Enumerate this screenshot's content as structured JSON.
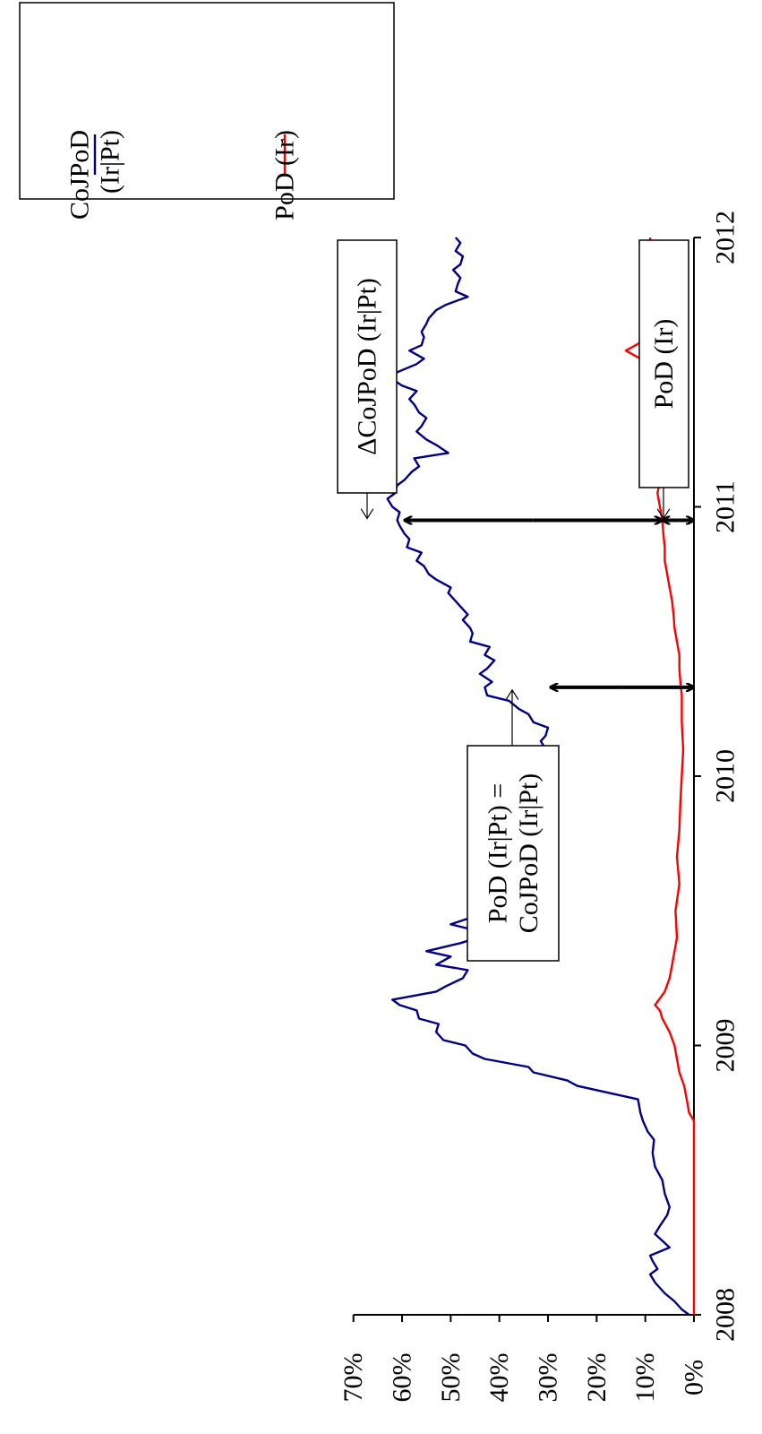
{
  "chart_data": {
    "type": "line",
    "title": "",
    "xlabel": "",
    "ylabel": "",
    "orientation": "rotated-90-clockwise",
    "x_ticks": [
      "2008",
      "2009",
      "2010",
      "2011",
      "2012"
    ],
    "x_range": [
      2008.0,
      2012.0
    ],
    "y_ticks": [
      "0%",
      "10%",
      "20%",
      "30%",
      "40%",
      "50%",
      "60%",
      "70%"
    ],
    "y_range": [
      0,
      70
    ],
    "legend_position": "top-right",
    "series": [
      {
        "name": "CoJPoD (Ir|Pt)",
        "color": "#000080",
        "x": [
          2008.0,
          2008.02,
          2008.05,
          2008.08,
          2008.1,
          2008.12,
          2008.15,
          2008.17,
          2008.2,
          2008.22,
          2008.25,
          2008.3,
          2008.33,
          2008.37,
          2008.4,
          2008.45,
          2008.5,
          2008.55,
          2008.6,
          2008.65,
          2008.68,
          2008.7,
          2008.72,
          2008.75,
          2008.8,
          2008.83,
          2008.85,
          2008.87,
          2008.9,
          2008.92,
          2008.95,
          2008.97,
          2009.0,
          2009.02,
          2009.05,
          2009.08,
          2009.1,
          2009.13,
          2009.15,
          2009.17,
          2009.2,
          2009.22,
          2009.25,
          2009.28,
          2009.3,
          2009.33,
          2009.35,
          2009.38,
          2009.4,
          2009.43,
          2009.45,
          2009.48,
          2009.5,
          2009.53,
          2009.55,
          2009.58,
          2009.6,
          2009.63,
          2009.65,
          2009.68,
          2009.7,
          2009.73,
          2009.75,
          2009.78,
          2009.8,
          2009.83,
          2009.85,
          2009.88,
          2009.9,
          2009.93,
          2009.95,
          2009.98,
          2010.0,
          2010.03,
          2010.05,
          2010.08,
          2010.1,
          2010.13,
          2010.15,
          2010.18,
          2010.2,
          2010.23,
          2010.25,
          2010.28,
          2010.3,
          2010.33,
          2010.35,
          2010.38,
          2010.4,
          2010.43,
          2010.45,
          2010.48,
          2010.5,
          2010.53,
          2010.55,
          2010.58,
          2010.6,
          2010.63,
          2010.65,
          2010.68,
          2010.7,
          2010.73,
          2010.75,
          2010.78,
          2010.8,
          2010.83,
          2010.85,
          2010.88,
          2010.9,
          2010.93,
          2010.95,
          2010.98,
          2011.0,
          2011.03,
          2011.05,
          2011.08,
          2011.1,
          2011.13,
          2011.15,
          2011.18,
          2011.2,
          2011.23,
          2011.25,
          2011.28,
          2011.3,
          2011.33,
          2011.35,
          2011.38,
          2011.4,
          2011.43,
          2011.45,
          2011.48,
          2011.5,
          2011.53,
          2011.55,
          2011.58,
          2011.6,
          2011.63,
          2011.65,
          2011.68,
          2011.7,
          2011.73,
          2011.75,
          2011.78,
          2011.8,
          2011.83,
          2011.85,
          2011.88,
          2011.9,
          2011.93,
          2011.95,
          2011.98,
          2012.0
        ],
        "y": [
          1,
          2.5,
          4,
          6,
          7,
          8,
          9,
          7.5,
          8.5,
          9,
          5,
          8,
          7,
          5.5,
          5,
          6,
          6.5,
          8,
          8.5,
          8.2,
          9.5,
          10,
          10.5,
          11,
          11.5,
          19,
          24,
          26,
          33,
          34,
          43,
          45.5,
          47,
          51.5,
          53,
          52.5,
          56.5,
          57,
          60.5,
          62,
          53,
          51,
          47.5,
          46.5,
          53,
          50,
          55,
          48,
          44.5,
          45.5,
          50,
          45,
          42.5,
          43.5,
          37,
          39,
          39.5,
          36.5,
          36,
          38,
          34.5,
          34,
          32.5,
          33,
          32,
          34,
          36.5,
          36.5,
          34.5,
          33.5,
          36,
          34.5,
          33,
          31.5,
          32,
          31,
          30.5,
          31.5,
          30.5,
          30,
          33,
          34,
          36,
          38,
          42.5,
          43,
          41.5,
          44,
          42.5,
          41,
          43,
          42,
          46,
          45.5,
          46,
          47.5,
          46.5,
          48,
          49,
          50.5,
          50,
          53,
          54.5,
          55.5,
          57,
          56,
          59,
          58.5,
          59.5,
          60.5,
          61,
          60.5,
          62,
          63,
          61.5,
          61,
          59.5,
          58,
          56.5,
          57.5,
          50.5,
          53,
          55,
          57,
          56,
          55,
          56.5,
          57.5,
          58.5,
          57,
          60,
          62.5,
          61,
          57,
          55.5,
          58.5,
          56,
          55.5,
          56,
          55,
          54.5,
          53,
          51,
          46.5,
          49,
          48.5,
          48,
          49.5,
          48,
          47.5,
          49,
          48,
          49
        ]
      },
      {
        "name": "PoD (Ir)",
        "color": "#ff0000",
        "x": [
          2008.0,
          2008.15,
          2008.3,
          2008.45,
          2008.6,
          2008.72,
          2008.75,
          2008.8,
          2008.85,
          2008.9,
          2008.95,
          2009.0,
          2009.05,
          2009.1,
          2009.13,
          2009.15,
          2009.2,
          2009.25,
          2009.3,
          2009.35,
          2009.4,
          2009.5,
          2009.6,
          2009.7,
          2009.8,
          2009.9,
          2010.0,
          2010.1,
          2010.2,
          2010.3,
          2010.35,
          2010.4,
          2010.45,
          2010.5,
          2010.55,
          2010.6,
          2010.65,
          2010.7,
          2010.75,
          2010.8,
          2010.85,
          2010.9,
          2010.95,
          2011.0,
          2011.05,
          2011.1,
          2011.15,
          2011.2,
          2011.25,
          2011.3,
          2011.35,
          2011.4,
          2011.45,
          2011.5,
          2011.55,
          2011.58,
          2011.62,
          2011.65,
          2011.7,
          2011.75,
          2011.8,
          2011.85,
          2011.9,
          2011.95,
          2012.0
        ],
        "y": [
          0,
          0,
          0,
          0,
          0,
          0,
          1,
          1.5,
          2,
          3,
          3.5,
          4,
          5,
          6.5,
          7,
          8,
          6,
          5,
          4.5,
          4,
          3.5,
          3.8,
          3,
          3.5,
          3,
          2.8,
          2.5,
          2.2,
          2.5,
          2.5,
          2.8,
          3,
          3,
          3.5,
          4,
          4.2,
          4.5,
          5,
          5.5,
          6,
          6,
          6.3,
          6.5,
          7,
          7.5,
          7,
          7.5,
          7.5,
          8,
          8.5,
          8.5,
          9,
          9,
          10.5,
          11,
          14,
          10,
          9.5,
          9,
          9,
          9.5,
          9,
          8.5,
          9,
          9
        ]
      }
    ],
    "annotations": [
      {
        "text": "ΔCoJPoD (Ir|Pt)",
        "lines": [
          "ΔCoJPoD (Ir|Pt)"
        ]
      },
      {
        "text": "PoD (Ir)",
        "lines": [
          "PoD (Ir)"
        ]
      },
      {
        "text": "PoD (Ir|Pt) = CoJPoD (Ir|Pt)",
        "lines": [
          "PoD (Ir|Pt) =",
          "CoJPoD (Ir|Pt)"
        ]
      }
    ],
    "legend": [
      {
        "lines": [
          "CoJPoD",
          "(Ir|Pt)"
        ],
        "color": "#000080"
      },
      {
        "lines": [
          "PoD (Ir)"
        ],
        "color": "#ff0000"
      }
    ]
  }
}
